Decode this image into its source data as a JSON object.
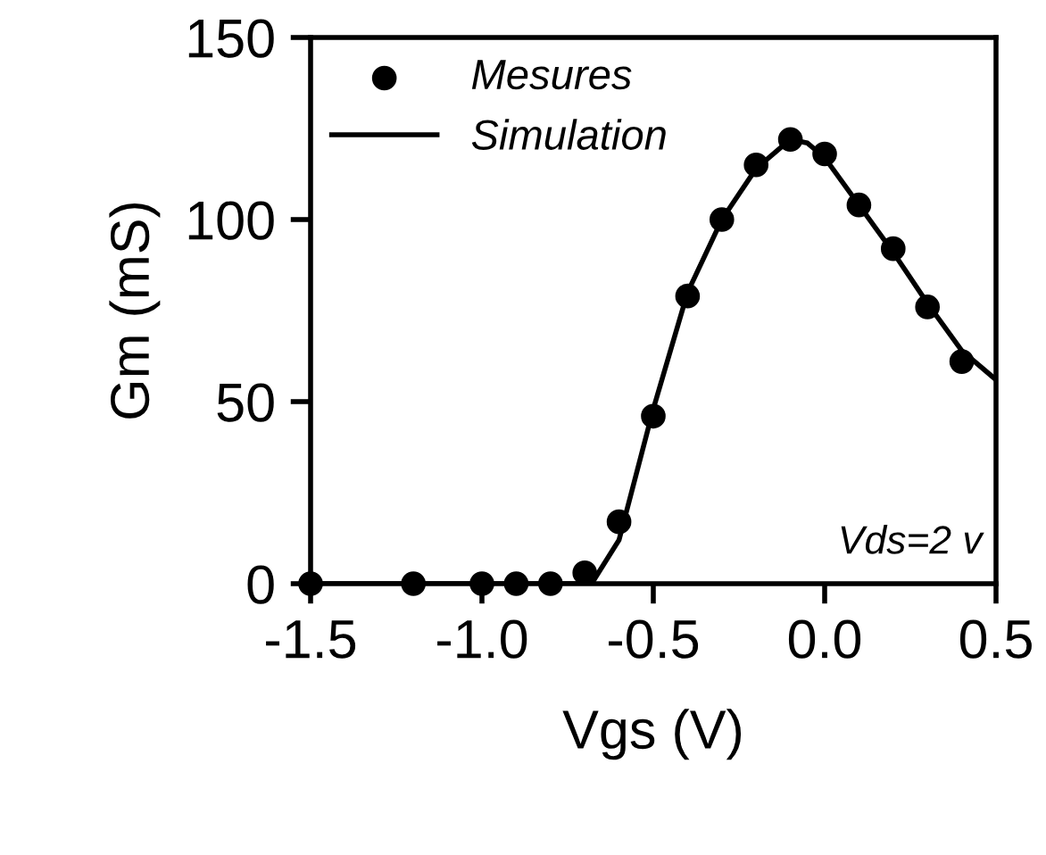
{
  "chart_data": {
    "type": "scatter",
    "xlabel": "Vgs (V)",
    "ylabel": "Gm (mS)",
    "xlim": [
      -1.5,
      0.5
    ],
    "ylim": [
      0,
      150
    ],
    "xticks": [
      {
        "value": -1.5,
        "label": "-1.5"
      },
      {
        "value": -1.0,
        "label": "-1.0"
      },
      {
        "value": -0.5,
        "label": "-0.5"
      },
      {
        "value": 0.0,
        "label": "0.0"
      },
      {
        "value": 0.5,
        "label": "0.5"
      }
    ],
    "yticks": [
      0,
      50,
      100,
      150
    ],
    "grid": false,
    "legend": "top left",
    "annotations": [
      "Vds=2 v"
    ],
    "series": [
      {
        "name": "Mesures",
        "marker": "circle",
        "color": "#000000",
        "x": [
          -1.5,
          -1.2,
          -1.0,
          -0.9,
          -0.8,
          -0.7,
          -0.6,
          -0.5,
          -0.4,
          -0.3,
          -0.2,
          -0.1,
          0.0,
          0.1,
          0.2,
          0.3,
          0.4
        ],
        "values": [
          0,
          0,
          0,
          0,
          0,
          3,
          17,
          46,
          79,
          100,
          115,
          122,
          118,
          104,
          92,
          76,
          61
        ]
      },
      {
        "name": "Simulation",
        "type": "line",
        "line_style": "solid",
        "color": "#000000",
        "x": [
          -1.5,
          -0.68,
          -0.6,
          -0.55,
          -0.5,
          -0.4,
          -0.3,
          -0.2,
          -0.1,
          -0.05,
          0.0,
          0.1,
          0.2,
          0.3,
          0.4,
          0.5
        ],
        "values": [
          0,
          0,
          12,
          30,
          48,
          80,
          100,
          114,
          122,
          121,
          117,
          104,
          91,
          77,
          64,
          56
        ]
      }
    ]
  }
}
